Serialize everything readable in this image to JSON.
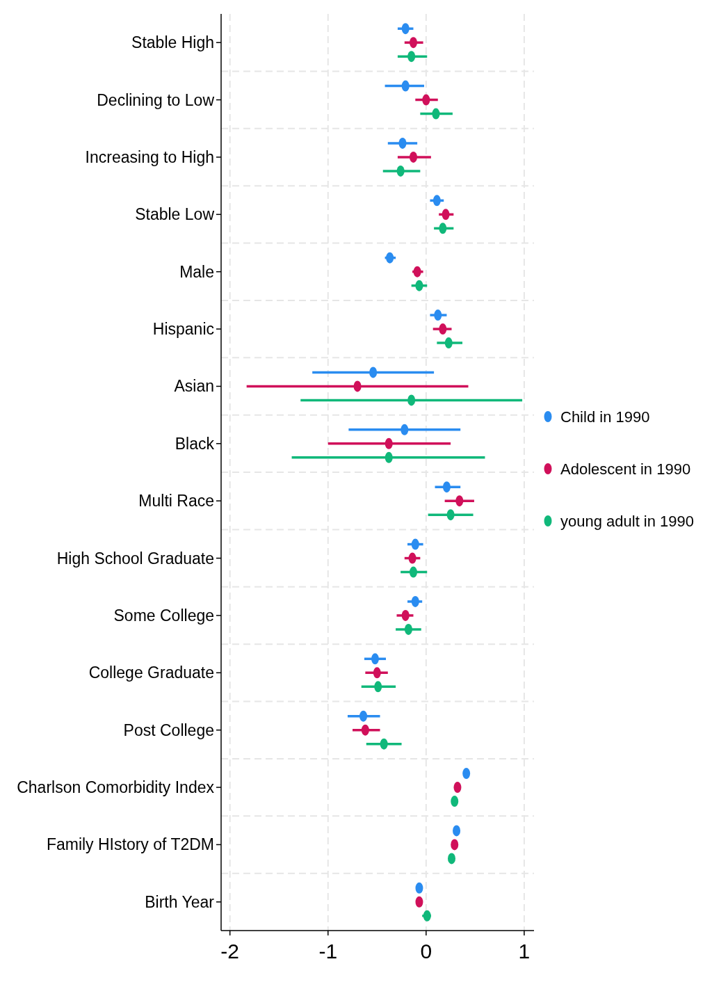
{
  "chart_data": {
    "type": "scatter",
    "orientation": "horizontal",
    "categories": [
      "Stable High",
      "Declining to Low",
      "Increasing to High",
      "Stable Low",
      "Male",
      "Hispanic",
      "Asian",
      "Black",
      "Multi Race",
      "High School Graduate",
      "Some College",
      "College Graduate",
      "Post College",
      "Charlson Comorbidity Index",
      "Family HIstory of T2DM",
      "Birth Year"
    ],
    "series": [
      {
        "name": "Child in 1990",
        "color": "#2a8cf0",
        "values": [
          -0.21,
          -0.21,
          -0.24,
          0.11,
          -0.37,
          0.12,
          -0.54,
          -0.22,
          0.21,
          -0.11,
          -0.11,
          -0.52,
          -0.64,
          0.41,
          0.31,
          -0.07
        ],
        "errors": [
          [
            -0.29,
            -0.13
          ],
          [
            -0.42,
            -0.02
          ],
          [
            -0.39,
            -0.09
          ],
          [
            0.04,
            0.18
          ],
          [
            -0.42,
            -0.31
          ],
          [
            0.04,
            0.21
          ],
          [
            -1.16,
            0.08
          ],
          [
            -0.79,
            0.35
          ],
          [
            0.09,
            0.35
          ],
          [
            -0.19,
            -0.03
          ],
          [
            -0.19,
            -0.04
          ],
          [
            -0.63,
            -0.41
          ],
          [
            -0.8,
            -0.47
          ],
          null,
          null,
          null
        ]
      },
      {
        "name": "Adolescent in 1990",
        "color": "#d0105a",
        "values": [
          -0.13,
          0.0,
          -0.13,
          0.2,
          -0.09,
          0.17,
          -0.7,
          -0.38,
          0.34,
          -0.14,
          -0.21,
          -0.5,
          -0.62,
          0.32,
          0.29,
          -0.07
        ],
        "errors": [
          [
            -0.22,
            -0.03
          ],
          [
            -0.11,
            0.12
          ],
          [
            -0.29,
            0.05
          ],
          [
            0.13,
            0.28
          ],
          [
            -0.14,
            -0.03
          ],
          [
            0.07,
            0.26
          ],
          [
            -1.83,
            0.43
          ],
          [
            -1.0,
            0.25
          ],
          [
            0.19,
            0.49
          ],
          [
            -0.22,
            -0.06
          ],
          [
            -0.3,
            -0.13
          ],
          [
            -0.62,
            -0.39
          ],
          [
            -0.75,
            -0.47
          ],
          null,
          null,
          null
        ]
      },
      {
        "name": "young adult in 1990",
        "color": "#10b87a",
        "values": [
          -0.15,
          0.1,
          -0.26,
          0.17,
          -0.07,
          0.23,
          -0.15,
          -0.38,
          0.25,
          -0.13,
          -0.18,
          -0.49,
          -0.43,
          0.29,
          0.26,
          0.01
        ],
        "errors": [
          [
            -0.29,
            0.01
          ],
          [
            -0.06,
            0.27
          ],
          [
            -0.44,
            -0.06
          ],
          [
            0.08,
            0.28
          ],
          [
            -0.15,
            0.01
          ],
          [
            0.11,
            0.37
          ],
          [
            -1.28,
            0.98
          ],
          [
            -1.37,
            0.6
          ],
          [
            0.02,
            0.48
          ],
          [
            -0.26,
            0.01
          ],
          [
            -0.31,
            -0.05
          ],
          [
            -0.66,
            -0.31
          ],
          [
            -0.61,
            -0.25
          ],
          null,
          null,
          [
            -0.04,
            0.05
          ]
        ]
      }
    ],
    "xlim": [
      -2.09,
      1.1
    ],
    "xticks": [
      -2,
      -1,
      0,
      1
    ],
    "grid": true,
    "legend": "right",
    "marker": "circle"
  }
}
